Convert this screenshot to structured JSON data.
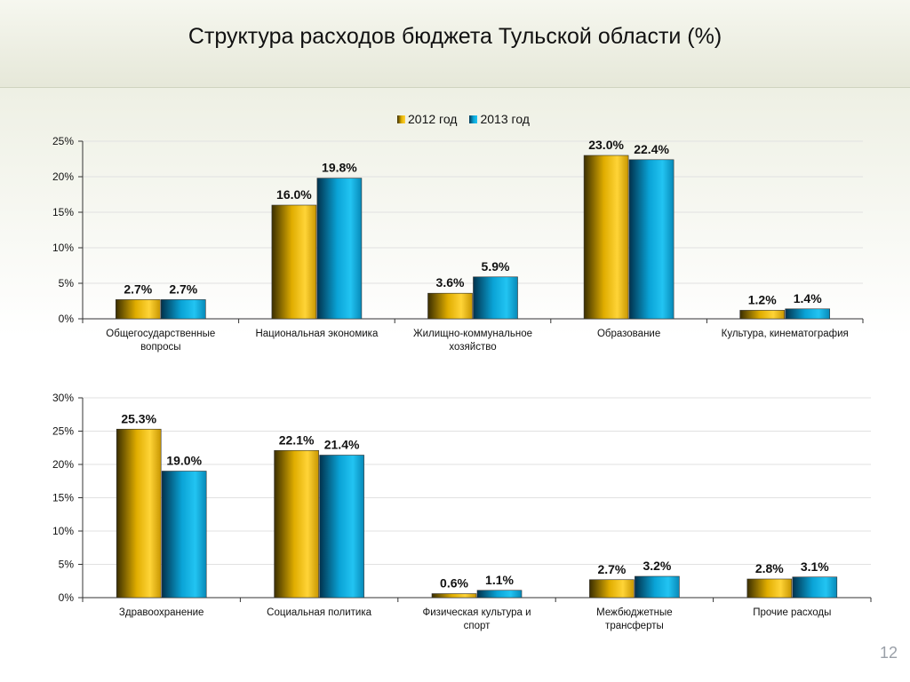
{
  "title": "Структура расходов бюджета Тульской области (%)",
  "page_number": "12",
  "legend": [
    {
      "label": "2012 год",
      "color": "#E3B200"
    },
    {
      "label": "2013 год",
      "color": "#0AA6D8"
    }
  ],
  "chart_data": [
    {
      "type": "bar",
      "series": [
        {
          "name": "2012 год",
          "values": [
            2.7,
            16.0,
            3.6,
            23.0,
            1.2
          ]
        },
        {
          "name": "2013 год",
          "values": [
            2.7,
            19.8,
            5.9,
            22.4,
            1.4
          ]
        }
      ],
      "categories": [
        [
          "Общегосударственные",
          "вопросы"
        ],
        [
          "Национальная экономика"
        ],
        [
          "Жилищно-коммунальное",
          "хозяйство"
        ],
        [
          "Образование"
        ],
        [
          "Культура, кинематография"
        ]
      ],
      "value_labels": {
        "2012": [
          "2.7%",
          "16.0%",
          "3.6%",
          "23.0%",
          "1.2%"
        ],
        "2013": [
          "2.7%",
          "19.8%",
          "5.9%",
          "22.4%",
          "1.4%"
        ]
      },
      "yticks": [
        "0%",
        "5%",
        "10%",
        "15%",
        "20%",
        "25%"
      ],
      "ylim": [
        0,
        25
      ],
      "grid": true,
      "legend_position": "top"
    },
    {
      "type": "bar",
      "series": [
        {
          "name": "2012 год",
          "values": [
            25.3,
            22.1,
            0.6,
            2.7,
            2.8
          ]
        },
        {
          "name": "2013 год",
          "values": [
            19.0,
            21.4,
            1.1,
            3.2,
            3.1
          ]
        }
      ],
      "categories": [
        [
          "Здравоохранение"
        ],
        [
          "Социальная политика"
        ],
        [
          "Физическая культура и",
          "спорт"
        ],
        [
          "Межбюджетные",
          "трансферты"
        ],
        [
          "Прочие расходы"
        ]
      ],
      "value_labels": {
        "2012": [
          "25.3%",
          "22.1%",
          "0.6%",
          "2.7%",
          "2.8%"
        ],
        "2013": [
          "19.0%",
          "21.4%",
          "1.1%",
          "3.2%",
          "3.1%"
        ]
      },
      "yticks": [
        "0%",
        "5%",
        "10%",
        "15%",
        "20%",
        "25%",
        "30%"
      ],
      "ylim": [
        0,
        30
      ],
      "grid": true,
      "legend_position": "none"
    }
  ]
}
